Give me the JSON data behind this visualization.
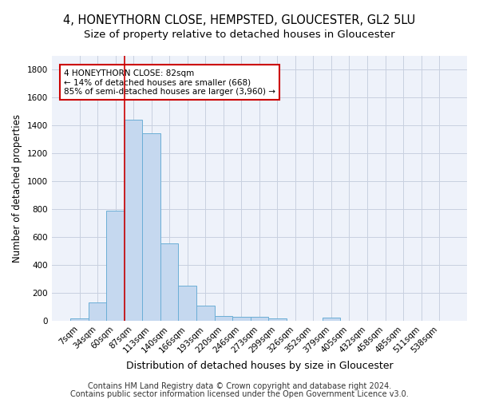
{
  "title": "4, HONEYTHORN CLOSE, HEMPSTED, GLOUCESTER, GL2 5LU",
  "subtitle": "Size of property relative to detached houses in Gloucester",
  "xlabel": "Distribution of detached houses by size in Gloucester",
  "ylabel": "Number of detached properties",
  "categories": [
    "7sqm",
    "34sqm",
    "60sqm",
    "87sqm",
    "113sqm",
    "140sqm",
    "166sqm",
    "193sqm",
    "220sqm",
    "246sqm",
    "273sqm",
    "299sqm",
    "326sqm",
    "352sqm",
    "379sqm",
    "405sqm",
    "432sqm",
    "458sqm",
    "485sqm",
    "511sqm",
    "538sqm"
  ],
  "values": [
    15,
    130,
    790,
    1440,
    1345,
    555,
    250,
    110,
    35,
    30,
    30,
    18,
    0,
    0,
    20,
    0,
    0,
    0,
    0,
    0,
    0
  ],
  "bar_color": "#c5d8ef",
  "bar_edge_color": "#6baed6",
  "vline_color": "#cc0000",
  "annotation_text": "4 HONEYTHORN CLOSE: 82sqm\n← 14% of detached houses are smaller (668)\n85% of semi-detached houses are larger (3,960) →",
  "annotation_box_color": "#ffffff",
  "annotation_box_edge_color": "#cc0000",
  "ylim": [
    0,
    1900
  ],
  "yticks": [
    0,
    200,
    400,
    600,
    800,
    1000,
    1200,
    1400,
    1600,
    1800
  ],
  "footer1": "Contains HM Land Registry data © Crown copyright and database right 2024.",
  "footer2": "Contains public sector information licensed under the Open Government Licence v3.0.",
  "bg_color": "#eef2fa",
  "grid_color": "#c8d0e0",
  "title_fontsize": 10.5,
  "subtitle_fontsize": 9.5,
  "xlabel_fontsize": 9,
  "ylabel_fontsize": 8.5,
  "tick_fontsize": 7.5,
  "footer_fontsize": 7,
  "annot_fontsize": 7.5
}
